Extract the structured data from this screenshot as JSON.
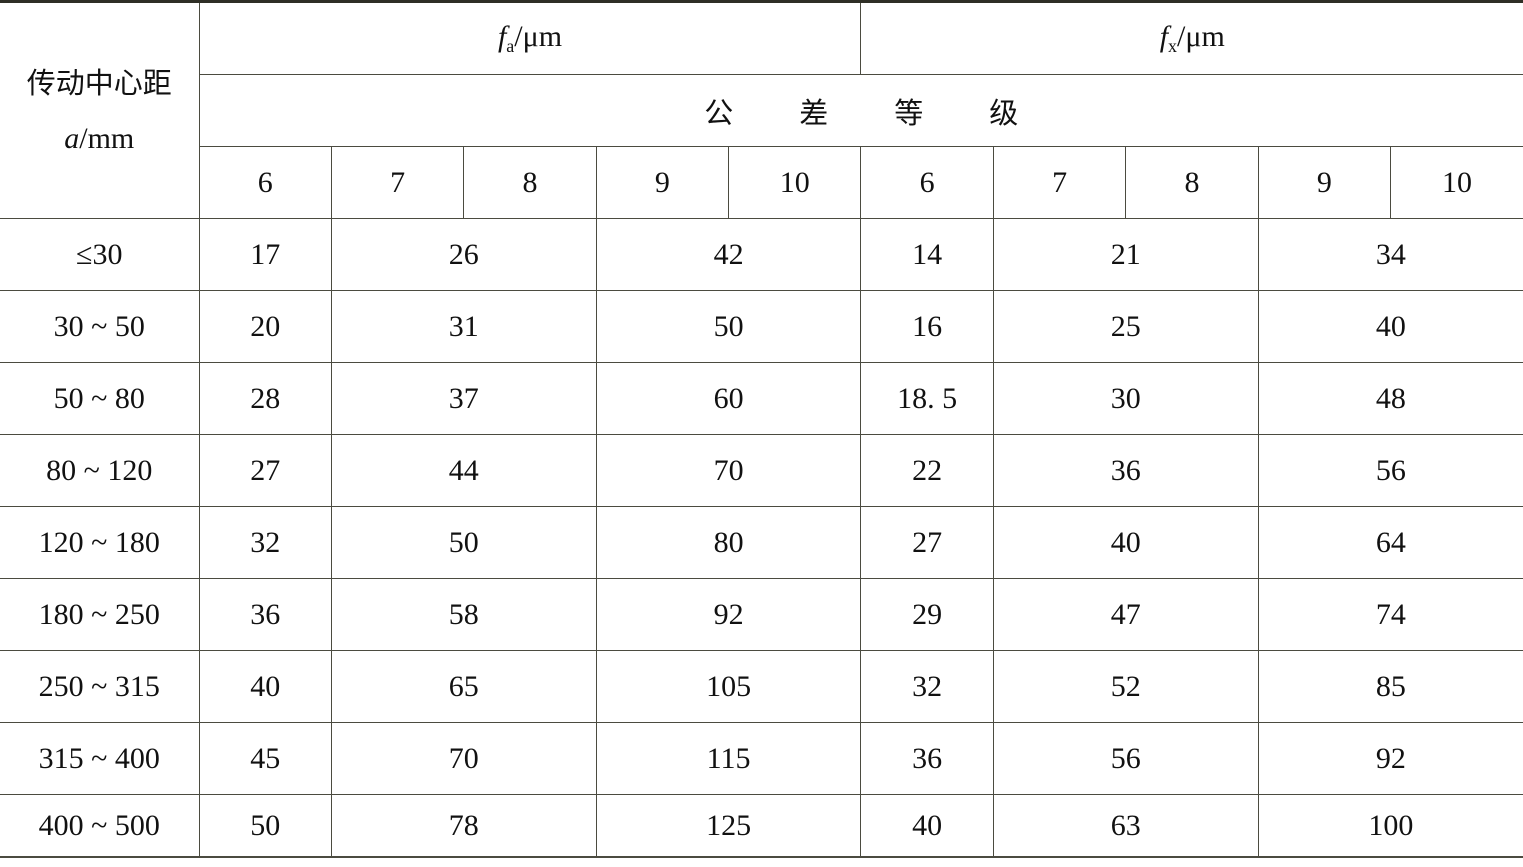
{
  "header": {
    "row_label": "传动中心距",
    "row_unit_symbol": "a",
    "row_unit": "/mm",
    "group_fa": {
      "symbol": "f",
      "sub": "a",
      "unit": "/μm"
    },
    "group_fx": {
      "symbol": "f",
      "sub": "x",
      "unit": "/μm"
    },
    "tolerance_grade_chars": [
      "公",
      "差",
      "等",
      "级"
    ],
    "grades": [
      "6",
      "7",
      "8",
      "9",
      "10"
    ]
  },
  "rows": [
    {
      "range": "≤30",
      "fa": [
        "17",
        "26",
        "42"
      ],
      "fx": [
        "14",
        "21",
        "34"
      ]
    },
    {
      "range": "30 ~ 50",
      "fa": [
        "20",
        "31",
        "50"
      ],
      "fx": [
        "16",
        "25",
        "40"
      ]
    },
    {
      "range": "50 ~ 80",
      "fa": [
        "28",
        "37",
        "60"
      ],
      "fx": [
        "18. 5",
        "30",
        "48"
      ]
    },
    {
      "range": "80 ~ 120",
      "fa": [
        "27",
        "44",
        "70"
      ],
      "fx": [
        "22",
        "36",
        "56"
      ]
    },
    {
      "range": "120 ~ 180",
      "fa": [
        "32",
        "50",
        "80"
      ],
      "fx": [
        "27",
        "40",
        "64"
      ]
    },
    {
      "range": "180 ~ 250",
      "fa": [
        "36",
        "58",
        "92"
      ],
      "fx": [
        "29",
        "47",
        "74"
      ]
    },
    {
      "range": "250 ~ 315",
      "fa": [
        "40",
        "65",
        "105"
      ],
      "fx": [
        "32",
        "52",
        "85"
      ]
    },
    {
      "range": "315 ~ 400",
      "fa": [
        "45",
        "70",
        "115"
      ],
      "fx": [
        "36",
        "56",
        "92"
      ]
    },
    {
      "range": "400 ~ 500",
      "fa": [
        "50",
        "78",
        "125"
      ],
      "fx": [
        "40",
        "63",
        "100"
      ]
    }
  ]
}
